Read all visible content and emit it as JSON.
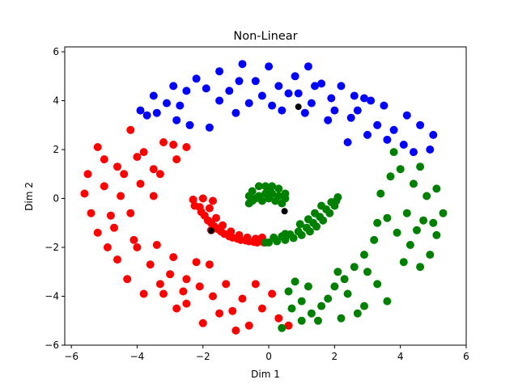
{
  "chart_data": {
    "type": "scatter",
    "title": "Non-Linear",
    "xlabel": "Dim 1",
    "ylabel": "Dim 2",
    "xlim": [
      -6.2,
      6.0
    ],
    "ylim": [
      -6.0,
      6.2
    ],
    "xticks": [
      -6,
      -4,
      -2,
      0,
      2,
      4,
      6
    ],
    "yticks": [
      -6,
      -4,
      -2,
      0,
      2,
      4,
      6
    ],
    "grid": false,
    "series": [
      {
        "color": "#0000ff",
        "points": [
          [
            0.0,
            5.4
          ],
          [
            -0.8,
            5.5
          ],
          [
            -1.5,
            5.2
          ],
          [
            -2.2,
            4.9
          ],
          [
            -2.9,
            4.6
          ],
          [
            -3.5,
            4.2
          ],
          [
            -3.9,
            3.6
          ],
          [
            -3.4,
            3.5
          ],
          [
            -2.7,
            3.8
          ],
          [
            -1.8,
            2.9
          ],
          [
            -1.2,
            4.4
          ],
          [
            -0.4,
            4.8
          ],
          [
            0.3,
            4.6
          ],
          [
            0.8,
            5.0
          ],
          [
            1.2,
            5.4
          ],
          [
            1.6,
            4.7
          ],
          [
            2.2,
            4.6
          ],
          [
            2.9,
            4.1
          ],
          [
            3.5,
            3.8
          ],
          [
            4.2,
            3.4
          ],
          [
            4.6,
            3.0
          ],
          [
            5.0,
            2.6
          ],
          [
            4.9,
            2.0
          ],
          [
            4.4,
            1.9
          ],
          [
            3.6,
            2.4
          ],
          [
            3.3,
            3.0
          ],
          [
            2.5,
            3.3
          ],
          [
            2.0,
            3.6
          ],
          [
            1.3,
            3.9
          ],
          [
            0.4,
            3.6
          ],
          [
            -0.6,
            3.9
          ],
          [
            -1.0,
            3.5
          ],
          [
            -1.5,
            4.0
          ],
          [
            -2.5,
            4.4
          ],
          [
            -3.1,
            3.9
          ],
          [
            -3.7,
            3.4
          ],
          [
            0.9,
            4.3
          ],
          [
            1.9,
            4.1
          ],
          [
            2.7,
            3.6
          ],
          [
            3.8,
            2.8
          ],
          [
            4.1,
            2.2
          ],
          [
            -0.2,
            4.2
          ],
          [
            0.6,
            4.3
          ],
          [
            1.4,
            4.6
          ],
          [
            -1.9,
            4.5
          ],
          [
            -2.8,
            3.2
          ],
          [
            2.4,
            2.3
          ],
          [
            3.1,
            4.0
          ],
          [
            0.1,
            3.8
          ],
          [
            1.1,
            3.5
          ],
          [
            -0.9,
            4.8
          ],
          [
            1.8,
            3.2
          ],
          [
            2.6,
            4.2
          ],
          [
            3.0,
            2.6
          ],
          [
            -2.4,
            3.0
          ]
        ]
      },
      {
        "color": "#ff0000",
        "points": [
          [
            -5.5,
            1.0
          ],
          [
            -5.2,
            2.1
          ],
          [
            -5.0,
            1.6
          ],
          [
            -4.6,
            1.3
          ],
          [
            -4.2,
            2.8
          ],
          [
            -4.0,
            1.7
          ],
          [
            -3.5,
            1.2
          ],
          [
            -3.2,
            2.3
          ],
          [
            -2.9,
            2.2
          ],
          [
            -2.5,
            2.1
          ],
          [
            -5.6,
            0.2
          ],
          [
            -5.4,
            -0.6
          ],
          [
            -5.2,
            -1.4
          ],
          [
            -4.8,
            -0.7
          ],
          [
            -4.5,
            0.1
          ],
          [
            -4.2,
            -0.6
          ],
          [
            -3.9,
            0.6
          ],
          [
            -3.5,
            0.1
          ],
          [
            -3.3,
            1.0
          ],
          [
            -4.9,
            -2.0
          ],
          [
            -4.6,
            -2.5
          ],
          [
            -4.3,
            -3.3
          ],
          [
            -4.0,
            -2.0
          ],
          [
            -3.6,
            -2.7
          ],
          [
            -3.3,
            -3.5
          ],
          [
            -2.9,
            -2.4
          ],
          [
            -2.5,
            -3.3
          ],
          [
            -2.1,
            -3.6
          ],
          [
            -1.7,
            -4.0
          ],
          [
            -1.3,
            -3.5
          ],
          [
            -0.8,
            -4.1
          ],
          [
            -0.6,
            -5.2
          ],
          [
            -1.0,
            -5.4
          ],
          [
            -1.5,
            -4.7
          ],
          [
            -2.0,
            -5.1
          ],
          [
            -2.5,
            -4.3
          ],
          [
            -2.8,
            -4.5
          ],
          [
            -3.2,
            -3.9
          ],
          [
            -3.8,
            -3.9
          ],
          [
            -4.1,
            -1.7
          ],
          [
            -0.2,
            -4.5
          ],
          [
            0.1,
            -3.9
          ],
          [
            0.3,
            -4.9
          ],
          [
            0.6,
            -5.2
          ],
          [
            -2.2,
            -2.6
          ],
          [
            -3.0,
            -3.1
          ],
          [
            -1.8,
            -2.7
          ],
          [
            -4.4,
            1.0
          ],
          [
            -3.8,
            1.9
          ],
          [
            -2.8,
            1.6
          ],
          [
            -4.7,
            -1.2
          ],
          [
            -3.4,
            -1.9
          ],
          [
            -2.6,
            -3.8
          ],
          [
            -1.1,
            -4.6
          ],
          [
            -0.4,
            -3.5
          ],
          [
            -5.0,
            0.5
          ],
          [
            -1.75,
            -1.3
          ],
          [
            -2.3,
            -0.05
          ],
          [
            -2.1,
            -0.35
          ],
          [
            -1.95,
            -0.7
          ],
          [
            -1.75,
            -1.0
          ],
          [
            -1.55,
            -1.25
          ],
          [
            -1.35,
            -1.45
          ],
          [
            -1.1,
            -1.6
          ],
          [
            -0.85,
            -1.7
          ],
          [
            -0.6,
            -1.75
          ],
          [
            -0.35,
            -1.8
          ],
          [
            -0.15,
            -1.8
          ],
          [
            -2.25,
            -0.3
          ],
          [
            -2.05,
            -0.55
          ],
          [
            -1.85,
            -0.9
          ],
          [
            -1.65,
            -1.15
          ],
          [
            -1.45,
            -1.35
          ],
          [
            -1.2,
            -1.55
          ],
          [
            -0.95,
            -1.65
          ],
          [
            -0.7,
            -1.72
          ],
          [
            -0.45,
            -1.78
          ],
          [
            -1.8,
            -0.4
          ],
          [
            -1.6,
            -0.8
          ],
          [
            -1.4,
            -1.1
          ],
          [
            -1.15,
            -1.35
          ],
          [
            -0.9,
            -1.5
          ],
          [
            -0.65,
            -1.6
          ],
          [
            -0.4,
            -1.65
          ],
          [
            -2.0,
            0.0
          ],
          [
            -1.7,
            -0.1
          ],
          [
            -0.2,
            -1.6
          ]
        ]
      },
      {
        "color": "#008000",
        "points": [
          [
            5.3,
            -0.6
          ],
          [
            5.1,
            -1.5
          ],
          [
            4.9,
            -2.3
          ],
          [
            4.6,
            -2.8
          ],
          [
            4.3,
            -1.9
          ],
          [
            3.9,
            -1.4
          ],
          [
            3.6,
            -0.8
          ],
          [
            3.4,
            0.2
          ],
          [
            3.7,
            0.9
          ],
          [
            4.0,
            1.2
          ],
          [
            4.4,
            0.6
          ],
          [
            4.8,
            0.1
          ],
          [
            5.1,
            0.4
          ],
          [
            4.7,
            -0.9
          ],
          [
            4.2,
            -0.6
          ],
          [
            3.2,
            -1.7
          ],
          [
            2.9,
            -2.3
          ],
          [
            2.6,
            -2.8
          ],
          [
            2.3,
            -3.3
          ],
          [
            2.0,
            -3.6
          ],
          [
            1.6,
            -4.4
          ],
          [
            1.3,
            -4.7
          ],
          [
            1.0,
            -5.0
          ],
          [
            0.7,
            -4.5
          ],
          [
            0.4,
            -5.3
          ],
          [
            1.8,
            -4.1
          ],
          [
            2.4,
            -3.9
          ],
          [
            2.9,
            -4.4
          ],
          [
            3.3,
            -3.5
          ],
          [
            3.6,
            -4.2
          ],
          [
            2.2,
            -4.9
          ],
          [
            1.5,
            -5.0
          ],
          [
            0.8,
            -3.4
          ],
          [
            1.2,
            -3.6
          ],
          [
            0.6,
            -3.8
          ],
          [
            2.7,
            -4.7
          ],
          [
            3.0,
            -3.0
          ],
          [
            4.5,
            -1.3
          ],
          [
            4.1,
            -2.6
          ],
          [
            5.0,
            -1.0
          ],
          [
            3.8,
            1.9
          ],
          [
            4.6,
            1.3
          ],
          [
            3.3,
            -1.0
          ],
          [
            2.1,
            -3.0
          ],
          [
            1.0,
            -4.2
          ],
          [
            -0.6,
            0.1
          ],
          [
            -0.5,
            0.3
          ],
          [
            -0.3,
            0.5
          ],
          [
            -0.1,
            0.5
          ],
          [
            0.1,
            0.5
          ],
          [
            0.3,
            0.4
          ],
          [
            0.5,
            0.2
          ],
          [
            -0.5,
            -0.1
          ],
          [
            -0.3,
            0.1
          ],
          [
            -0.1,
            0.2
          ],
          [
            0.1,
            0.2
          ],
          [
            0.3,
            0.1
          ],
          [
            0.5,
            0.0
          ],
          [
            -0.4,
            0.0
          ],
          [
            -0.2,
            -0.1
          ],
          [
            0.0,
            0.0
          ],
          [
            0.2,
            -0.1
          ],
          [
            0.4,
            -0.2
          ],
          [
            -0.6,
            -0.2
          ],
          [
            0.0,
            0.4
          ],
          [
            2.1,
            0.05
          ],
          [
            2.0,
            -0.3
          ],
          [
            1.85,
            -0.6
          ],
          [
            1.65,
            -0.9
          ],
          [
            1.45,
            -1.15
          ],
          [
            1.25,
            -1.35
          ],
          [
            1.0,
            -1.5
          ],
          [
            0.75,
            -1.62
          ],
          [
            0.5,
            -1.7
          ],
          [
            0.25,
            -1.75
          ],
          [
            0.0,
            -1.8
          ],
          [
            -0.1,
            -1.8
          ],
          [
            1.9,
            -0.15
          ],
          [
            1.75,
            -0.45
          ],
          [
            1.55,
            -0.75
          ],
          [
            1.35,
            -1.0
          ],
          [
            1.15,
            -1.2
          ],
          [
            0.9,
            -1.35
          ],
          [
            0.65,
            -1.47
          ],
          [
            0.4,
            -1.55
          ],
          [
            0.15,
            -1.6
          ],
          [
            1.6,
            -0.3
          ],
          [
            1.4,
            -0.6
          ],
          [
            1.2,
            -0.85
          ],
          [
            0.95,
            -1.05
          ],
          [
            2.05,
            -0.1
          ],
          [
            0.5,
            -1.45
          ]
        ]
      },
      {
        "color": "#000000",
        "points": [
          [
            0.9,
            3.75
          ],
          [
            0.48,
            -0.52
          ],
          [
            -1.75,
            -1.32
          ]
        ]
      }
    ]
  }
}
